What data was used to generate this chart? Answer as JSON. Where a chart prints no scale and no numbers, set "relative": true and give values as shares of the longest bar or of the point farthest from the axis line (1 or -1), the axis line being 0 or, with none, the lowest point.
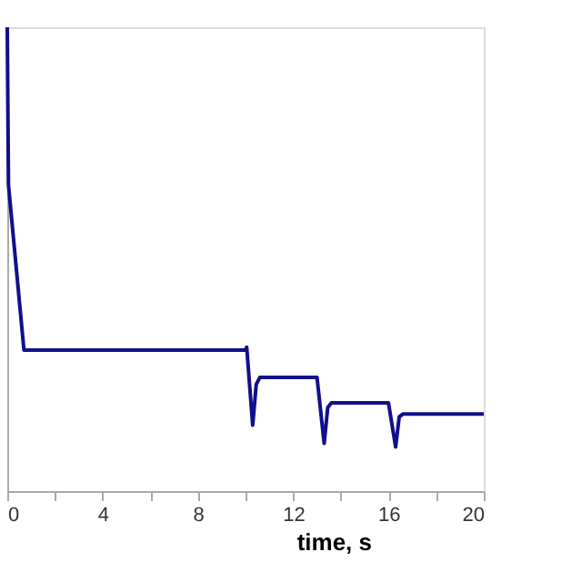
{
  "chart_data": {
    "type": "line",
    "relative": true,
    "xlabel": "time, s",
    "tick_labels": "x",
    "grid": false,
    "marker": "none",
    "line_style": "solid",
    "xlim": [
      0,
      20
    ],
    "xticks": [
      0,
      {
        "value": 2,
        "label": null
      },
      4,
      {
        "value": 6,
        "label": null
      },
      8,
      {
        "value": 10,
        "label": null
      },
      12,
      {
        "value": 14,
        "label": null
      },
      16,
      {
        "value": 18,
        "label": null
      },
      20
    ],
    "series": [
      {
        "color": "#10108c",
        "x": [
          0,
          0.05,
          0.7,
          10.0,
          10.05,
          10.3,
          10.45,
          10.6,
          13.0,
          13.3,
          13.45,
          13.6,
          16.0,
          16.3,
          16.45,
          16.6,
          20
        ],
        "values": [
          1.0,
          0.66,
          0.304,
          0.304,
          0.31,
          0.142,
          0.23,
          0.245,
          0.245,
          0.103,
          0.18,
          0.19,
          0.19,
          0.095,
          0.16,
          0.166,
          0.166
        ]
      }
    ]
  }
}
